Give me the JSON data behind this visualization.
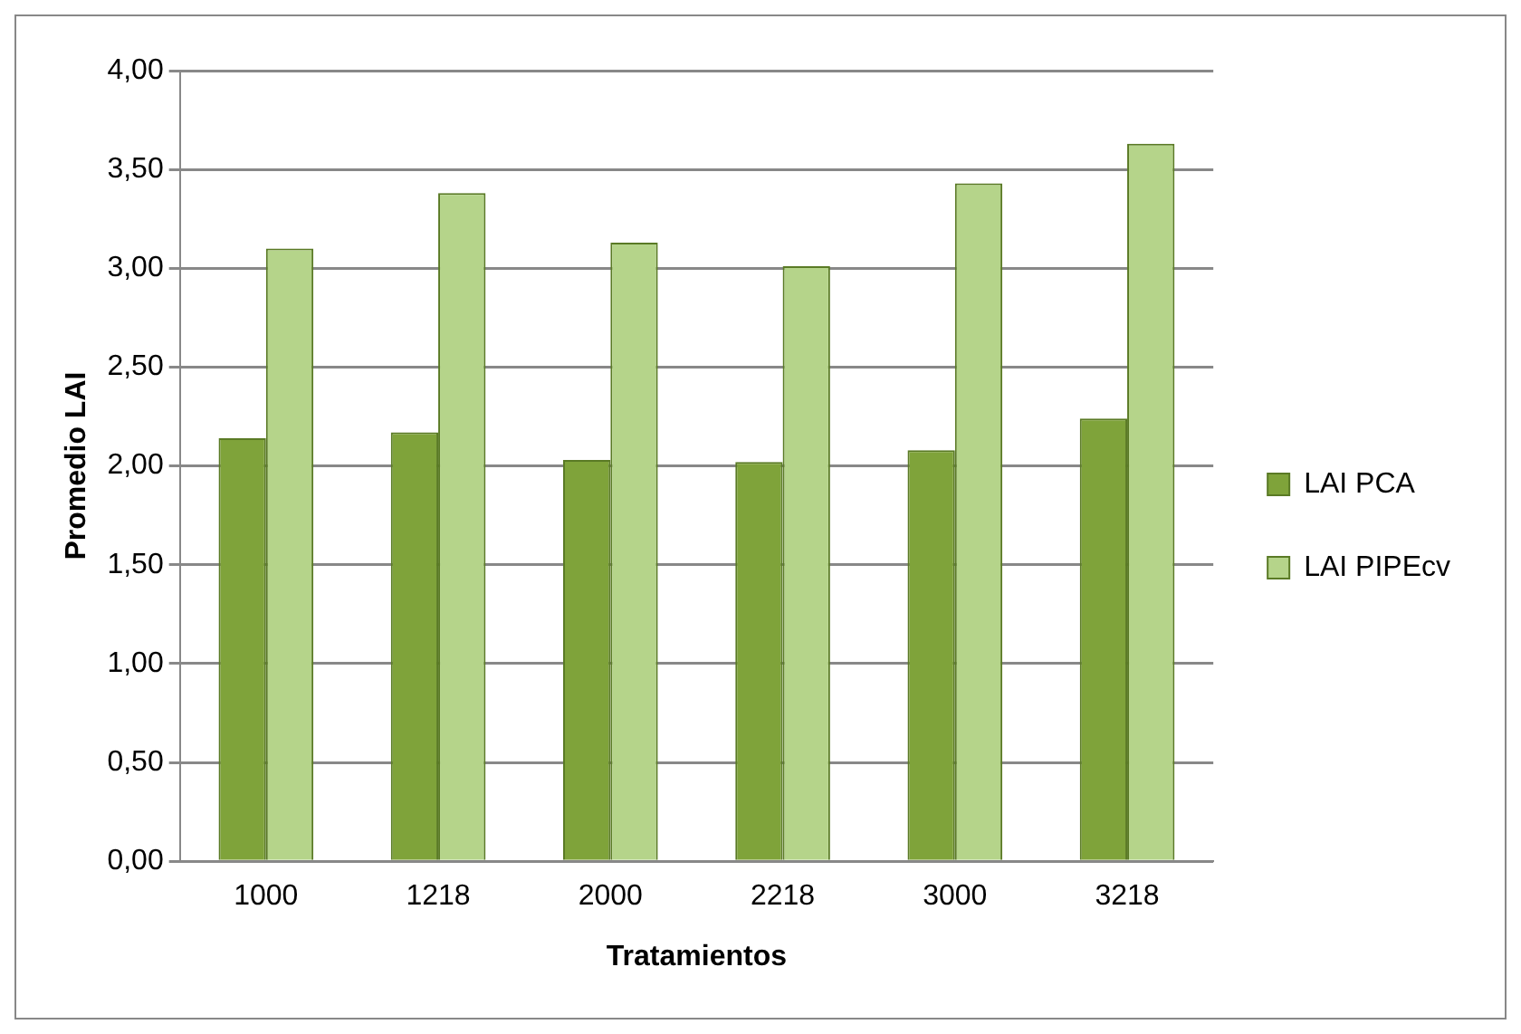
{
  "chart_data": {
    "type": "bar",
    "xlabel": "Tratamientos",
    "ylabel": "Promedio LAI",
    "categories": [
      "1000",
      "1218",
      "2000",
      "2218",
      "3000",
      "3218"
    ],
    "series": [
      {
        "name": "LAI PCA",
        "color": "#7fa33a",
        "values": [
          2.14,
          2.17,
          2.03,
          2.02,
          2.08,
          2.24
        ]
      },
      {
        "name": "LAI PIPEcv",
        "color": "#b5d48a",
        "values": [
          3.1,
          3.38,
          3.13,
          3.01,
          3.43,
          3.63
        ]
      }
    ],
    "ylim": [
      0,
      4
    ],
    "yticks": [
      {
        "value": 0,
        "label": "0,00"
      },
      {
        "value": 0.5,
        "label": "0,50"
      },
      {
        "value": 1,
        "label": "1,00"
      },
      {
        "value": 1.5,
        "label": "1,50"
      },
      {
        "value": 2,
        "label": "2,00"
      },
      {
        "value": 2.5,
        "label": "2,50"
      },
      {
        "value": 3,
        "label": "3,00"
      },
      {
        "value": 3.5,
        "label": "3,50"
      },
      {
        "value": 4,
        "label": "4,00"
      }
    ],
    "grid": "y",
    "legend": "right"
  }
}
